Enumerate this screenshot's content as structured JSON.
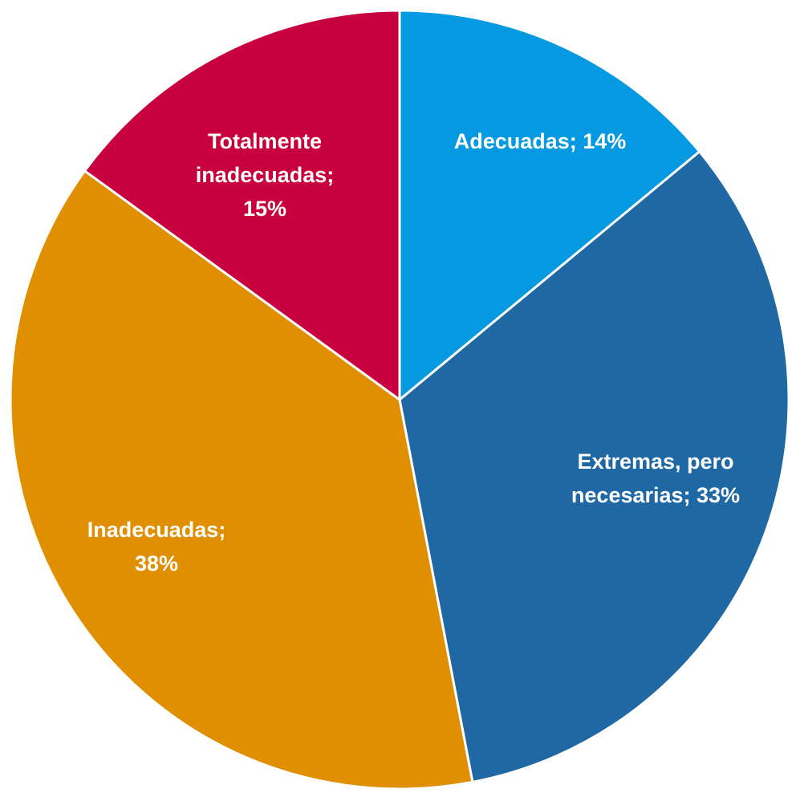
{
  "chart_data": {
    "type": "pie",
    "values": [
      14,
      33,
      38,
      15
    ],
    "value_labels": [
      [
        "Adecuadas; 14%"
      ],
      [
        "Extremas, pero",
        "necesarias; 33%"
      ],
      [
        "Inadecuadas;",
        "38%"
      ],
      [
        "Totalmente",
        "inadecuadas;",
        "15%"
      ]
    ],
    "colors": [
      "#0499e0",
      "#1f68a4",
      "#e08f00",
      "#c8003f"
    ]
  }
}
